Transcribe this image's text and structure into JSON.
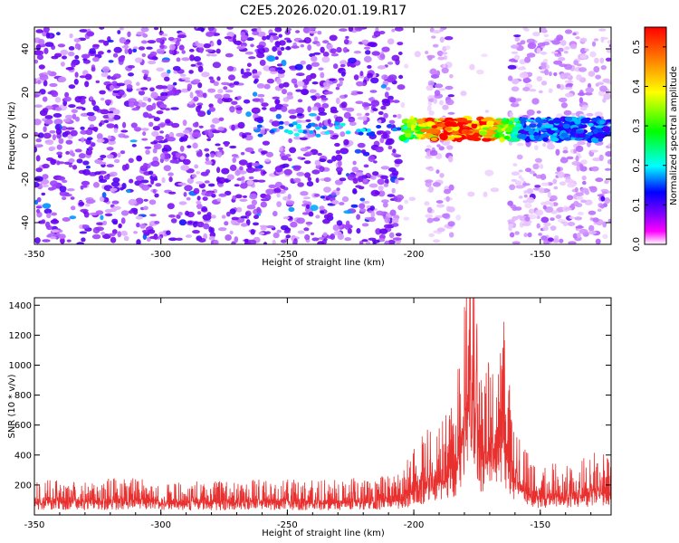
{
  "title": "C2E5.2026.020.01.19.R17",
  "chart_data": [
    {
      "type": "heatmap",
      "xlabel": "Height of straight line (km)",
      "ylabel": "Frequency (Hz)",
      "xlim": [
        -350,
        -122
      ],
      "ylim": [
        -50,
        50
      ],
      "x_ticks": [
        -350,
        -300,
        -250,
        -200,
        -150
      ],
      "y_ticks": [
        -40,
        -20,
        0,
        20,
        40
      ],
      "colorbar": {
        "label": "Normalized spectral amplitude",
        "range": [
          0,
          0.55
        ],
        "ticks": [
          "0.0",
          "0.1",
          "0.2",
          "0.3",
          "0.4",
          "0.5"
        ],
        "colors": [
          "#ffffff",
          "#ff00ff",
          "#8000ff",
          "#0000ff",
          "#00ffff",
          "#00ff00",
          "#ffff00",
          "#ff8000",
          "#ff0000"
        ]
      },
      "features": {
        "background_level": 0.08,
        "band_center_hz": 3,
        "band_x_range": [
          -205,
          -122
        ],
        "band_peak_level": 0.5,
        "band_peak_x": -182,
        "low_noise_regions": [
          [
            -205,
            -195
          ],
          [
            -185,
            -162
          ]
        ]
      }
    },
    {
      "type": "line",
      "xlabel": "Height of straight line (km)",
      "ylabel": "SNR (10 * v/v)",
      "xlim": [
        -350,
        -122
      ],
      "ylim": [
        0,
        1450
      ],
      "x_ticks": [
        -350,
        -300,
        -250,
        -200,
        -150
      ],
      "y_ticks": [
        200,
        400,
        600,
        800,
        1000,
        1200,
        1400
      ],
      "color": "#e8302f",
      "series": [
        {
          "x": [
            -350,
            -330,
            -310,
            -290,
            -270,
            -250,
            -230,
            -215,
            -205,
            -200,
            -195,
            -190,
            -185,
            -182,
            -180,
            -178,
            -176,
            -174,
            -172,
            -170,
            -168,
            -166,
            -164,
            -162,
            -160,
            -155,
            -150,
            -145,
            -140,
            -135,
            -130,
            -125,
            -122
          ],
          "y": [
            170,
            160,
            165,
            150,
            155,
            160,
            160,
            175,
            200,
            310,
            380,
            420,
            520,
            700,
            1100,
            1420,
            1100,
            760,
            640,
            820,
            780,
            1050,
            900,
            550,
            380,
            280,
            220,
            230,
            220,
            240,
            280,
            270,
            260
          ]
        }
      ]
    }
  ]
}
